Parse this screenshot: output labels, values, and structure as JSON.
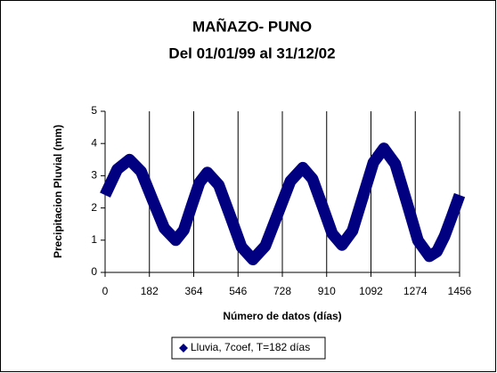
{
  "chart_data": {
    "type": "line",
    "title": "MAÑAZO- PUNO",
    "subtitle": "Del 01/01/99 al 31/12/02",
    "x_label": "Número de datos (días)",
    "y_label": "Precipitacion Pluvial (mm)",
    "x": [
      0,
      50,
      100,
      148,
      195,
      243,
      290,
      323,
      355,
      388,
      420,
      467,
      514,
      560,
      607,
      658,
      710,
      761,
      812,
      852,
      893,
      933,
      973,
      1016,
      1059,
      1102,
      1145,
      1192,
      1239,
      1285,
      1332,
      1363,
      1394,
      1425,
      1456
    ],
    "series": [
      {
        "name": "Lluvia, 7coef, T=182 días",
        "color": "#000080",
        "values": [
          2.4,
          3.2,
          3.5,
          3.13,
          2.25,
          1.37,
          1.0,
          1.31,
          2.05,
          2.79,
          3.1,
          2.71,
          1.75,
          0.79,
          0.4,
          0.82,
          1.83,
          2.83,
          3.25,
          2.9,
          2.05,
          1.2,
          0.85,
          1.29,
          2.35,
          3.41,
          3.85,
          3.36,
          2.18,
          0.99,
          0.5,
          0.65,
          1.12,
          1.75,
          2.4
        ]
      }
    ],
    "xlim": [
      0,
      1456
    ],
    "xticks": [
      0,
      182,
      364,
      546,
      728,
      910,
      1092,
      1274,
      1456
    ],
    "ylim": [
      0,
      5
    ],
    "yticks": [
      0,
      1,
      2,
      3,
      4,
      5
    ],
    "grid": "x",
    "legend": "bottom"
  }
}
